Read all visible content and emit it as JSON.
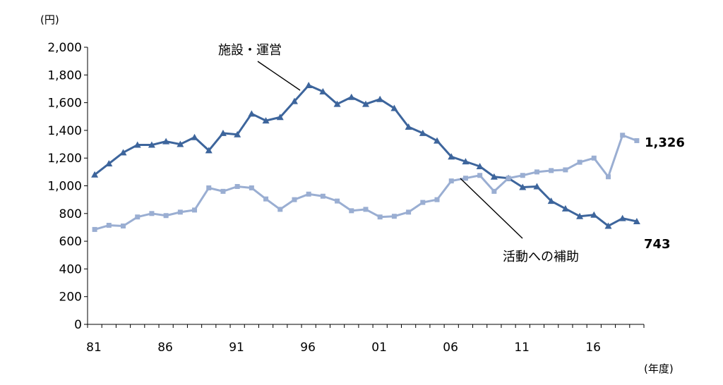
{
  "chart_data": {
    "type": "line",
    "y_unit_label": "(円)",
    "x_unit_label": "(年度)",
    "ylim": [
      0,
      2000
    ],
    "y_ticks": [
      0,
      200,
      400,
      600,
      800,
      1000,
      1200,
      1400,
      1600,
      1800,
      2000
    ],
    "y_tick_labels": [
      "0",
      "200",
      "400",
      "600",
      "800",
      "1,000",
      "1,200",
      "1,400",
      "1,600",
      "1,800",
      "2,000"
    ],
    "x_ticks": [
      1981,
      1986,
      1991,
      1996,
      2001,
      2006,
      2011,
      2016
    ],
    "x_tick_labels": [
      "81",
      "86",
      "91",
      "96",
      "01",
      "06",
      "11",
      "16"
    ],
    "x": [
      1981,
      1982,
      1983,
      1984,
      1985,
      1986,
      1987,
      1988,
      1989,
      1990,
      1991,
      1992,
      1993,
      1994,
      1995,
      1996,
      1997,
      1998,
      1999,
      2000,
      2001,
      2002,
      2003,
      2004,
      2005,
      2006,
      2007,
      2008,
      2009,
      2010,
      2011,
      2012,
      2013,
      2014,
      2015,
      2016,
      2017,
      2018,
      2019
    ],
    "series": [
      {
        "name": "施設・運営",
        "color": "#3d659c",
        "marker": "triangle",
        "values": [
          1080,
          1160,
          1240,
          1295,
          1295,
          1320,
          1300,
          1350,
          1255,
          1380,
          1370,
          1520,
          1470,
          1495,
          1610,
          1725,
          1680,
          1590,
          1640,
          1590,
          1625,
          1560,
          1425,
          1380,
          1325,
          1210,
          1175,
          1140,
          1065,
          1055,
          990,
          995,
          890,
          835,
          780,
          790,
          710,
          765,
          743
        ]
      },
      {
        "name": "活動への補助",
        "color": "#9aaed2",
        "marker": "square",
        "values": [
          685,
          715,
          710,
          775,
          800,
          785,
          810,
          825,
          985,
          960,
          995,
          985,
          905,
          830,
          900,
          940,
          925,
          890,
          820,
          830,
          775,
          780,
          810,
          880,
          900,
          1035,
          1055,
          1075,
          960,
          1055,
          1075,
          1100,
          1110,
          1115,
          1170,
          1200,
          1065,
          1365,
          1326
        ]
      }
    ],
    "end_labels": [
      "743",
      "1,326"
    ],
    "grid": false,
    "legend": "none"
  }
}
